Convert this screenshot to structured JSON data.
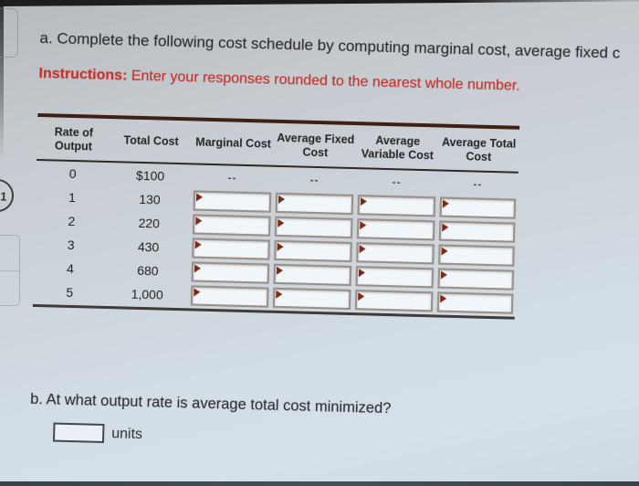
{
  "question_a": {
    "text": "a. Complete the following cost schedule by computing marginal cost, average fixed c",
    "instructions_label": "Instructions:",
    "instructions_text": " Enter your responses rounded to the nearest whole number."
  },
  "table": {
    "headers": [
      "Rate of Output",
      "Total Cost",
      "Marginal Cost",
      "Average Fixed Cost",
      "Average Variable Cost",
      "Average Total Cost"
    ],
    "input_columns": [
      "marginal-cost",
      "average-fixed-cost",
      "average-variable-cost",
      "average-total-cost"
    ],
    "rows": [
      {
        "rate": "0",
        "total_cost": "$100",
        "has_inputs": false,
        "computed": [
          "--",
          "--",
          "--",
          "--"
        ]
      },
      {
        "rate": "1",
        "total_cost": "130",
        "has_inputs": true,
        "inputs": [
          "",
          "",
          "",
          ""
        ]
      },
      {
        "rate": "2",
        "total_cost": "220",
        "has_inputs": true,
        "inputs": [
          "",
          "",
          "",
          ""
        ]
      },
      {
        "rate": "3",
        "total_cost": "430",
        "has_inputs": true,
        "inputs": [
          "",
          "",
          "",
          ""
        ]
      },
      {
        "rate": "4",
        "total_cost": "680",
        "has_inputs": true,
        "inputs": [
          "",
          "",
          "",
          ""
        ]
      },
      {
        "rate": "5",
        "total_cost": "1,000",
        "has_inputs": true,
        "inputs": [
          "",
          "",
          "",
          ""
        ]
      }
    ]
  },
  "question_b": {
    "text": "b. At what output rate is average total cost minimized?",
    "answer_value": "",
    "unit_label": "units"
  },
  "edge": {
    "badge_label": "1"
  },
  "colors": {
    "instruction_red": "#c3322c",
    "table_top_rule": "#3f2015",
    "input_border": "#9a9089",
    "input_marker": "#7c2a13",
    "screen_bezel": "#1e1e1e"
  }
}
